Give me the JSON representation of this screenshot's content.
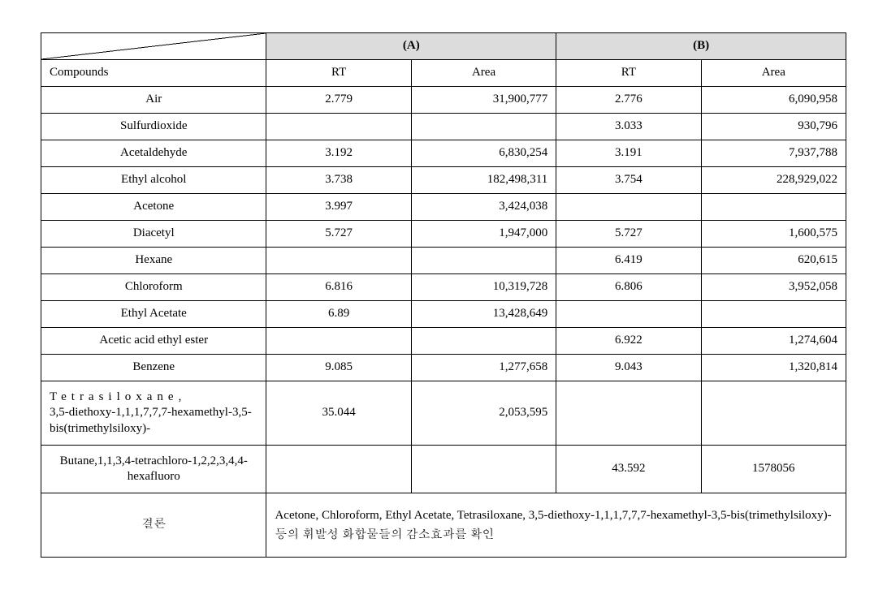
{
  "table": {
    "header": {
      "groupA": "(A)",
      "groupB": "(B)",
      "compounds": "Compounds",
      "rt": "RT",
      "area": "Area"
    },
    "rows": [
      {
        "name": "Air",
        "a_rt": "2.779",
        "a_area": "31,900,777",
        "b_rt": "2.776",
        "b_area": "6,090,958",
        "align": "center"
      },
      {
        "name": "Sulfurdioxide",
        "a_rt": "",
        "a_area": "",
        "b_rt": "3.033",
        "b_area": "930,796",
        "align": "center"
      },
      {
        "name": "Acetaldehyde",
        "a_rt": "3.192",
        "a_area": "6,830,254",
        "b_rt": "3.191",
        "b_area": "7,937,788",
        "align": "center"
      },
      {
        "name": "Ethyl alcohol",
        "a_rt": "3.738",
        "a_area": "182,498,311",
        "b_rt": "3.754",
        "b_area": "228,929,022",
        "align": "center"
      },
      {
        "name": "Acetone",
        "a_rt": "3.997",
        "a_area": "3,424,038",
        "b_rt": "",
        "b_area": "",
        "align": "center"
      },
      {
        "name": "Diacetyl",
        "a_rt": "5.727",
        "a_area": "1,947,000",
        "b_rt": "5.727",
        "b_area": "1,600,575",
        "align": "center"
      },
      {
        "name": "Hexane",
        "a_rt": "",
        "a_area": "",
        "b_rt": "6.419",
        "b_area": "620,615",
        "align": "center"
      },
      {
        "name": "Chloroform",
        "a_rt": "6.816",
        "a_area": "10,319,728",
        "b_rt": "6.806",
        "b_area": "3,952,058",
        "align": "center"
      },
      {
        "name": "Ethyl Acetate",
        "a_rt": "6.89",
        "a_area": "13,428,649",
        "b_rt": "",
        "b_area": "",
        "align": "center"
      },
      {
        "name": "Acetic acid  ethyl ester",
        "a_rt": "",
        "a_area": "",
        "b_rt": "6.922",
        "b_area": "1,274,604",
        "align": "center"
      },
      {
        "name": "Benzene",
        "a_rt": "9.085",
        "a_area": "1,277,658",
        "b_rt": "9.043",
        "b_area": "1,320,814",
        "align": "center"
      }
    ],
    "tetra": {
      "name_line1": "Tetrasiloxane,",
      "name_rest": "3,5-diethoxy-1,1,1,7,7,7-hexamethyl-3,5-bis(trimethylsiloxy)-",
      "a_rt": "35.044",
      "a_area": "2,053,595",
      "b_rt": "",
      "b_area": ""
    },
    "butane": {
      "name": "Butane,1,1,3,4-tetrachloro-1,2,2,3,4,4-hexafluoro",
      "a_rt": "",
      "a_area": "",
      "b_rt": "43.592",
      "b_area": "1578056"
    },
    "conclusion": {
      "label": "결론",
      "text": "Acetone, Chloroform, Ethyl Acetate, Tetrasiloxane, 3,5-diethoxy-1,1,1,7,7,7-hexamethyl-3,5-bis(trimethylsiloxy)-  등의 휘발성 화합물들의 감소효과를 확인"
    }
  }
}
